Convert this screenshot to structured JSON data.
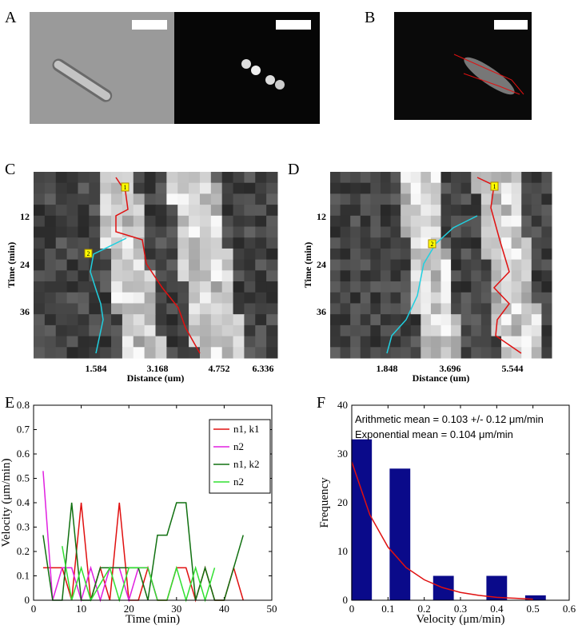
{
  "panels": {
    "a": "A",
    "b": "B",
    "c": "C",
    "d": "D",
    "e": "E",
    "f": "F"
  },
  "kymographs": [
    {
      "ylabel": "Time (min)",
      "xlabel": "Distance (um)",
      "yticks": [
        "12",
        "24",
        "36"
      ],
      "xticks": [
        "1.584",
        "3.168",
        "4.752",
        "6.336"
      ],
      "markers": [
        "1",
        "2"
      ]
    },
    {
      "ylabel": "Time (min)",
      "xlabel": "Distance (um)",
      "yticks": [
        "12",
        "24",
        "36"
      ],
      "xticks": [
        "1.848",
        "3.696",
        "5.544"
      ],
      "markers": [
        "1",
        "2"
      ]
    }
  ],
  "chart_data": [
    {
      "type": "line",
      "xlabel": "Time (min)",
      "ylabel": "Velocity (μm/min)",
      "x": [
        2,
        4,
        6,
        8,
        10,
        12,
        14,
        16,
        18,
        20,
        22,
        24,
        26,
        28,
        30,
        32,
        34,
        36,
        38,
        40,
        42,
        44
      ],
      "series": [
        {
          "name": "n1, k1",
          "color": "#e01010",
          "values": [
            0.133,
            0.133,
            0.133,
            0,
            0.4,
            0,
            0.133,
            0,
            0.4,
            0,
            0,
            0.133,
            0,
            0,
            0.133,
            0.133,
            0,
            0.133,
            0,
            0,
            0.133,
            0
          ]
        },
        {
          "name": "n2",
          "color": "#e020e0",
          "values": [
            0.53,
            0,
            0.133,
            0.133,
            0,
            0.133,
            0,
            0.133,
            0.133,
            0,
            0.133,
            0.133,
            0,
            null,
            null,
            null,
            null,
            null,
            null,
            null,
            null,
            null
          ]
        },
        {
          "name": "n1, k2",
          "color": "#107010",
          "values": [
            0.267,
            0,
            0,
            0.4,
            0,
            0,
            0.133,
            0.133,
            0.133,
            0.133,
            0.133,
            0,
            0.267,
            0.267,
            0.4,
            0.4,
            0,
            0.133,
            0,
            0,
            0.133,
            0.267
          ]
        },
        {
          "name": "n2",
          "color": "#30e030",
          "values": [
            null,
            null,
            0.222,
            0,
            0.133,
            0,
            0.067,
            0.133,
            0,
            0.133,
            0.133,
            0.133,
            0,
            0,
            0.133,
            0,
            0.133,
            0,
            0.133,
            null,
            null,
            null
          ]
        }
      ],
      "xlim": [
        0,
        50
      ],
      "xticks": [
        0,
        10,
        20,
        30,
        40,
        50
      ],
      "ylim": [
        0,
        0.8
      ],
      "yticks": [
        0,
        0.1,
        0.2,
        0.3,
        0.4,
        0.5,
        0.6,
        0.7,
        0.8
      ],
      "legend": "top-right"
    },
    {
      "type": "bar",
      "xlabel": "Velocity (μm/min)",
      "ylabel": "Frequency",
      "color": "#0a0a8a",
      "x": [
        0.027,
        0.133,
        0.253,
        0.4,
        0.507
      ],
      "values": [
        33,
        27,
        5,
        5,
        1
      ],
      "fit": {
        "color": "#e01010",
        "x": [
          0,
          0.05,
          0.1,
          0.15,
          0.2,
          0.25,
          0.3,
          0.35,
          0.4,
          0.45,
          0.5
        ],
        "values": [
          28.4,
          17.5,
          10.9,
          6.7,
          4.2,
          2.6,
          1.6,
          1.0,
          0.6,
          0.4,
          0.2
        ]
      },
      "annotations": [
        "Arithmetic mean = 0.103 +/- 0.12 μm/min",
        "Exponential mean = 0.104 μm/min"
      ],
      "xlim": [
        0,
        0.6
      ],
      "xticks": [
        0,
        0.1,
        0.2,
        0.3,
        0.4,
        0.5,
        0.6
      ],
      "ylim": [
        0,
        40
      ],
      "yticks": [
        0,
        10,
        20,
        30,
        40
      ]
    }
  ]
}
